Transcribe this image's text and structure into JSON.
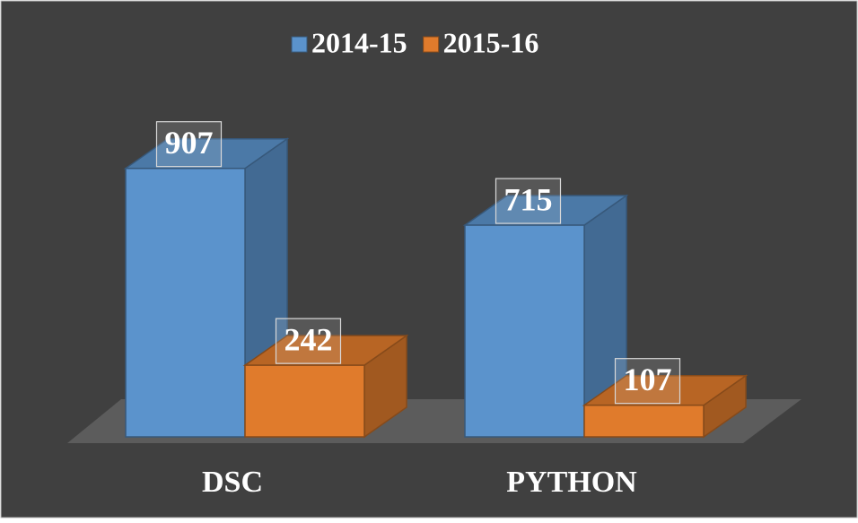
{
  "chart_data": {
    "type": "bar3d",
    "categories": [
      "DSC",
      "PYTHON"
    ],
    "series": [
      {
        "name": "2014-15",
        "color": "#5b93cc",
        "values": [
          907,
          715
        ]
      },
      {
        "name": "2015-16",
        "color": "#e07b2c",
        "values": [
          242,
          107
        ]
      }
    ],
    "legend": "top"
  }
}
